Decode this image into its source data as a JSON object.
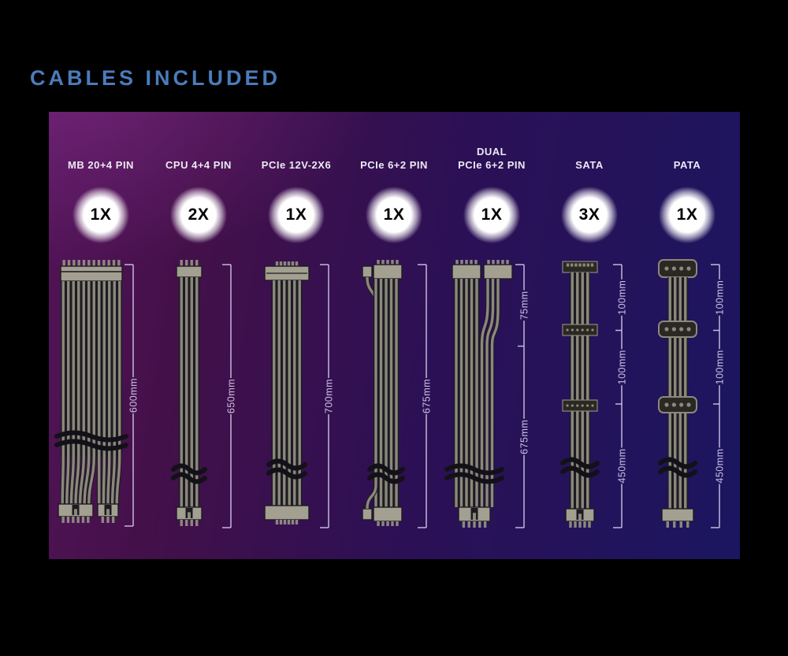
{
  "title": "CABLES INCLUDED",
  "colors": {
    "title": "#4a7cbc",
    "panel_left": "#521457",
    "panel_mid1": "#431049",
    "panel_mid2": "#2c1055",
    "panel_right": "#1b1660",
    "header_text": "#eceaf4",
    "measure": "#cbc1e3",
    "strand": "#8b887c",
    "housing": "#a39f91",
    "dark": "#1d1b21",
    "tie": "#131118",
    "badge_text": "#000000",
    "background": "#000000"
  },
  "columns": [
    {
      "header_lines": [
        "MB 20+4 PIN"
      ],
      "count": "1X",
      "type": "mb20_4",
      "measurements": [
        "600mm"
      ]
    },
    {
      "header_lines": [
        "CPU 4+4 PIN"
      ],
      "count": "2X",
      "type": "cpu4_4",
      "measurements": [
        "650mm"
      ]
    },
    {
      "header_lines": [
        "PCIe 12V-2X6"
      ],
      "count": "1X",
      "type": "pcie_12v_2x6",
      "measurements": [
        "700mm"
      ]
    },
    {
      "header_lines": [
        "PCIe 6+2 PIN"
      ],
      "count": "1X",
      "type": "pcie_6_2",
      "measurements": [
        "675mm"
      ]
    },
    {
      "header_lines": [
        "DUAL",
        "PCIe 6+2 PIN"
      ],
      "count": "1X",
      "type": "dual_pcie_6_2",
      "measurements": [
        "75mm",
        "675mm"
      ]
    },
    {
      "header_lines": [
        "SATA"
      ],
      "count": "3X",
      "type": "sata",
      "measurements": [
        "100mm",
        "100mm",
        "450mm"
      ]
    },
    {
      "header_lines": [
        "PATA"
      ],
      "count": "1X",
      "type": "pata",
      "measurements": [
        "100mm",
        "100mm",
        "450mm"
      ]
    }
  ]
}
